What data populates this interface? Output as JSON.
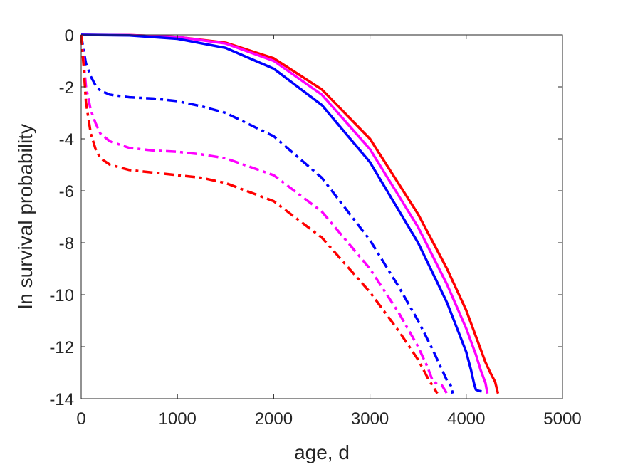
{
  "chart_data": {
    "type": "line",
    "title": "",
    "xlabel": "age, d",
    "ylabel": "ln survival probability",
    "xlim": [
      0,
      5000
    ],
    "ylim": [
      -14,
      0
    ],
    "xticks": [
      0,
      1000,
      2000,
      3000,
      4000,
      5000
    ],
    "yticks": [
      0,
      -2,
      -4,
      -6,
      -8,
      -10,
      -12,
      -14
    ],
    "xtick_labels": [
      "0",
      "1000",
      "2000",
      "3000",
      "4000",
      "5000"
    ],
    "ytick_labels": [
      "0",
      "-2",
      "-4",
      "-6",
      "-8",
      "-10",
      "-12",
      "-14"
    ],
    "grid": false,
    "legend": "none",
    "series": [
      {
        "color": "#ff0000",
        "style": "solid",
        "x": [
          0,
          500,
          1000,
          1500,
          2000,
          2500,
          3000,
          3500,
          3800,
          4000,
          4100,
          4200,
          4250,
          4300,
          4330
        ],
        "y": [
          0,
          -0.01,
          -0.08,
          -0.3,
          -0.9,
          -2.1,
          -4.0,
          -6.9,
          -9.0,
          -10.6,
          -11.6,
          -12.6,
          -13.0,
          -13.35,
          -13.8
        ]
      },
      {
        "color": "#ff00ff",
        "style": "solid",
        "x": [
          0,
          500,
          1000,
          1500,
          2000,
          2500,
          3000,
          3500,
          3800,
          4000,
          4100,
          4150,
          4200,
          4220
        ],
        "y": [
          0,
          -0.01,
          -0.08,
          -0.33,
          -1.0,
          -2.3,
          -4.4,
          -7.4,
          -9.6,
          -11.3,
          -12.3,
          -12.9,
          -13.4,
          -13.8
        ]
      },
      {
        "color": "#0000ff",
        "style": "solid",
        "x": [
          0,
          500,
          1000,
          1500,
          2000,
          2500,
          3000,
          3500,
          3800,
          4000,
          4050,
          4080,
          4100,
          4130,
          4160
        ],
        "y": [
          0,
          -0.02,
          -0.15,
          -0.5,
          -1.3,
          -2.7,
          -4.9,
          -8.0,
          -10.3,
          -12.2,
          -12.9,
          -13.4,
          -13.65,
          -13.7,
          -13.72
        ]
      },
      {
        "color": "#0000ff",
        "style": "dashdot",
        "x": [
          0,
          25,
          50,
          100,
          150,
          200,
          300,
          500,
          750,
          1000,
          1250,
          1500,
          2000,
          2500,
          3000,
          3300,
          3500,
          3650,
          3750,
          3800,
          3840,
          3860
        ],
        "y": [
          0,
          -0.6,
          -1.1,
          -1.6,
          -1.95,
          -2.15,
          -2.3,
          -2.4,
          -2.45,
          -2.55,
          -2.75,
          -3.0,
          -3.9,
          -5.5,
          -7.9,
          -9.7,
          -11.0,
          -12.1,
          -12.9,
          -13.3,
          -13.5,
          -13.8
        ]
      },
      {
        "color": "#ff00ff",
        "style": "dashdot",
        "x": [
          0,
          25,
          50,
          100,
          150,
          200,
          300,
          500,
          750,
          1000,
          1250,
          1500,
          2000,
          2500,
          3000,
          3300,
          3500,
          3600,
          3650,
          3700,
          3750,
          3800
        ],
        "y": [
          0,
          -1.0,
          -2.0,
          -2.9,
          -3.4,
          -3.8,
          -4.1,
          -4.35,
          -4.45,
          -4.5,
          -4.6,
          -4.75,
          -5.4,
          -6.8,
          -9.0,
          -10.7,
          -12.0,
          -12.8,
          -13.3,
          -13.45,
          -13.5,
          -13.8
        ]
      },
      {
        "color": "#ff0000",
        "style": "dashdot",
        "x": [
          0,
          25,
          50,
          100,
          150,
          200,
          300,
          500,
          750,
          1000,
          1250,
          1500,
          2000,
          2500,
          3000,
          3300,
          3500,
          3600,
          3700
        ],
        "y": [
          0,
          -1.2,
          -2.6,
          -3.8,
          -4.4,
          -4.75,
          -5.0,
          -5.2,
          -5.3,
          -5.4,
          -5.5,
          -5.7,
          -6.4,
          -7.8,
          -9.9,
          -11.4,
          -12.5,
          -13.2,
          -13.8
        ]
      }
    ]
  }
}
